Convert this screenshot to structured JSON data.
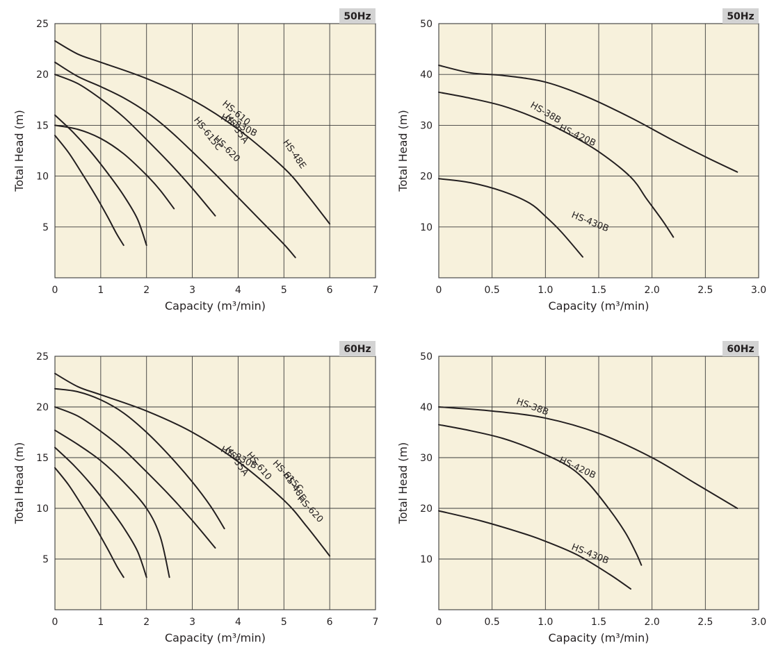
{
  "chart_data": [
    {
      "type": "line",
      "badge": "50Hz",
      "xlabel": "Capacity (m³/min)",
      "ylabel": "Total Head (m)",
      "xlim": [
        0,
        7
      ],
      "ylim": [
        0,
        25
      ],
      "xticks": [
        0,
        1,
        2,
        3,
        4,
        5,
        6,
        7
      ],
      "xtick_labels": [
        "0",
        "1",
        "2",
        "3",
        "4",
        "5",
        "6",
        "7"
      ],
      "yticks": [
        5,
        10,
        15,
        20,
        25
      ],
      "ytick_labels": [
        "5",
        "10",
        "15",
        "20",
        "25"
      ],
      "grid": true,
      "series": [
        {
          "name": "HS-35A",
          "x": [
            0,
            0.3,
            0.6,
            0.9,
            1.15,
            1.35,
            1.5
          ],
          "y": [
            14,
            12.3,
            10.2,
            8.0,
            6.0,
            4.3,
            3.2
          ]
        },
        {
          "name": "HS-48E",
          "x": [
            0,
            0.4,
            0.8,
            1.2,
            1.5,
            1.8,
            2.0
          ],
          "y": [
            16,
            14.3,
            12.3,
            10.0,
            8.1,
            5.8,
            3.2
          ]
        },
        {
          "name": "HS-610",
          "x": [
            0,
            0.5,
            1.0,
            1.5,
            2.0,
            2.3,
            2.6
          ],
          "y": [
            15,
            14.6,
            13.7,
            12.2,
            10.1,
            8.6,
            6.8
          ]
        },
        {
          "name": "HS-615C",
          "x": [
            0,
            0.5,
            1.0,
            1.5,
            2.0,
            2.5,
            3.0,
            3.5
          ],
          "y": [
            20,
            19.1,
            17.6,
            15.8,
            13.6,
            11.3,
            8.8,
            6.1
          ]
        },
        {
          "name": "HS-620",
          "x": [
            0,
            0.5,
            1.0,
            1.5,
            2.0,
            2.5,
            3.0,
            3.5,
            4.0,
            4.5,
            5.0,
            5.25
          ],
          "y": [
            21.2,
            19.8,
            18.8,
            17.7,
            16.3,
            14.5,
            12.4,
            10.2,
            7.9,
            5.6,
            3.3,
            2.0
          ]
        },
        {
          "name": "HS-830B",
          "x": [
            0,
            0.5,
            1.0,
            2.0,
            3.0,
            4.0,
            5.0,
            5.5,
            6.0
          ],
          "y": [
            23.3,
            22.0,
            21.2,
            19.6,
            17.5,
            14.6,
            10.8,
            8.2,
            5.3
          ]
        }
      ]
    },
    {
      "type": "line",
      "badge": "50Hz",
      "xlabel": "Capacity (m³/min)",
      "ylabel": "Total Head (m)",
      "xlim": [
        0,
        3.0
      ],
      "ylim": [
        0,
        50
      ],
      "xticks": [
        0,
        0.5,
        1.0,
        1.5,
        2.0,
        2.5,
        3.0
      ],
      "xtick_labels": [
        "0",
        "0.5",
        "1.0",
        "1.5",
        "2.0",
        "2.5",
        "3.0"
      ],
      "yticks": [
        10,
        20,
        30,
        40,
        50
      ],
      "ytick_labels": [
        "10",
        "20",
        "30",
        "40",
        "50"
      ],
      "grid": true,
      "series": [
        {
          "name": "HS-38B",
          "x": [
            0,
            0.3,
            0.6,
            0.85,
            1.0,
            1.15,
            1.35
          ],
          "y": [
            19.5,
            18.7,
            17.0,
            14.7,
            12.1,
            9.0,
            4.1
          ]
        },
        {
          "name": "HS-420B",
          "x": [
            0,
            0.3,
            0.6,
            0.9,
            1.2,
            1.5,
            1.8,
            1.95,
            2.1,
            2.2
          ],
          "y": [
            36.5,
            35.3,
            33.8,
            31.5,
            28.5,
            24.8,
            19.8,
            15.5,
            11.2,
            8.0
          ]
        },
        {
          "name": "HS-430B",
          "x": [
            0,
            0.3,
            0.6,
            1.0,
            1.4,
            1.8,
            2.2,
            2.5,
            2.8
          ],
          "y": [
            41.8,
            40.3,
            39.8,
            38.5,
            35.5,
            31.5,
            27.0,
            23.8,
            20.8
          ]
        }
      ]
    },
    {
      "type": "line",
      "badge": "60Hz",
      "xlabel": "Capacity (m³/min)",
      "ylabel": "Total Head (m)",
      "xlim": [
        0,
        7
      ],
      "ylim": [
        0,
        25
      ],
      "xticks": [
        0,
        1,
        2,
        3,
        4,
        5,
        6,
        7
      ],
      "xtick_labels": [
        "0",
        "1",
        "2",
        "3",
        "4",
        "5",
        "6",
        "7"
      ],
      "yticks": [
        5,
        10,
        15,
        20,
        25
      ],
      "ytick_labels": [
        "5",
        "10",
        "15",
        "20",
        "25"
      ],
      "grid": true,
      "series": [
        {
          "name": "HS-35A",
          "x": [
            0,
            0.3,
            0.6,
            0.9,
            1.15,
            1.35,
            1.5
          ],
          "y": [
            14,
            12.3,
            10.2,
            8.0,
            6.0,
            4.3,
            3.2
          ]
        },
        {
          "name": "HS-48E",
          "x": [
            0,
            0.4,
            0.8,
            1.2,
            1.5,
            1.8,
            2.0
          ],
          "y": [
            16,
            14.3,
            12.3,
            10.0,
            8.1,
            5.8,
            3.2
          ]
        },
        {
          "name": "HS-610",
          "x": [
            0,
            0.5,
            1.0,
            1.5,
            2.0,
            2.3,
            2.5
          ],
          "y": [
            17.7,
            16.3,
            14.7,
            12.6,
            10.0,
            7.2,
            3.2
          ]
        },
        {
          "name": "HS-615C",
          "x": [
            0,
            0.5,
            1.0,
            1.5,
            2.0,
            2.5,
            3.0,
            3.5
          ],
          "y": [
            20,
            19.1,
            17.6,
            15.8,
            13.6,
            11.3,
            8.8,
            6.1
          ]
        },
        {
          "name": "HS-620",
          "x": [
            0,
            0.5,
            1.0,
            1.5,
            2.0,
            2.5,
            3.0,
            3.4,
            3.7
          ],
          "y": [
            21.8,
            21.5,
            20.7,
            19.4,
            17.5,
            15.2,
            12.6,
            10.2,
            8.0
          ]
        },
        {
          "name": "HS-830B",
          "x": [
            0,
            0.5,
            1.0,
            2.0,
            3.0,
            4.0,
            5.0,
            5.5,
            6.0
          ],
          "y": [
            23.3,
            22.0,
            21.2,
            19.6,
            17.5,
            14.6,
            10.8,
            8.2,
            5.3
          ]
        }
      ]
    },
    {
      "type": "line",
      "badge": "60Hz",
      "xlabel": "Capacity (m³/min)",
      "ylabel": "Total Head (m)",
      "xlim": [
        0,
        3.0
      ],
      "ylim": [
        0,
        50
      ],
      "xticks": [
        0,
        0.5,
        1.0,
        1.5,
        2.0,
        2.5,
        3.0
      ],
      "xtick_labels": [
        "0",
        "0.5",
        "1.0",
        "1.5",
        "2.0",
        "2.5",
        "3.0"
      ],
      "yticks": [
        10,
        20,
        30,
        40,
        50
      ],
      "ytick_labels": [
        "10",
        "20",
        "30",
        "40",
        "50"
      ],
      "grid": true,
      "series": [
        {
          "name": "HS-38B",
          "x": [
            0,
            0.4,
            0.8,
            1.0,
            1.3,
            1.6,
            1.8
          ],
          "y": [
            19.5,
            17.5,
            15.0,
            13.5,
            10.8,
            7.0,
            4.1
          ]
        },
        {
          "name": "HS-420B",
          "x": [
            0,
            0.3,
            0.6,
            0.9,
            1.2,
            1.4,
            1.6,
            1.75,
            1.85,
            1.9
          ],
          "y": [
            36.5,
            35.3,
            33.8,
            31.5,
            28.5,
            25.0,
            19.8,
            15.2,
            11.2,
            8.8
          ]
        },
        {
          "name": "HS-430B",
          "x": [
            0,
            0.5,
            1.0,
            1.5,
            2.0,
            2.4,
            2.8
          ],
          "y": [
            40.0,
            39.2,
            37.8,
            34.8,
            30.0,
            25.0,
            20.0
          ]
        }
      ]
    }
  ]
}
